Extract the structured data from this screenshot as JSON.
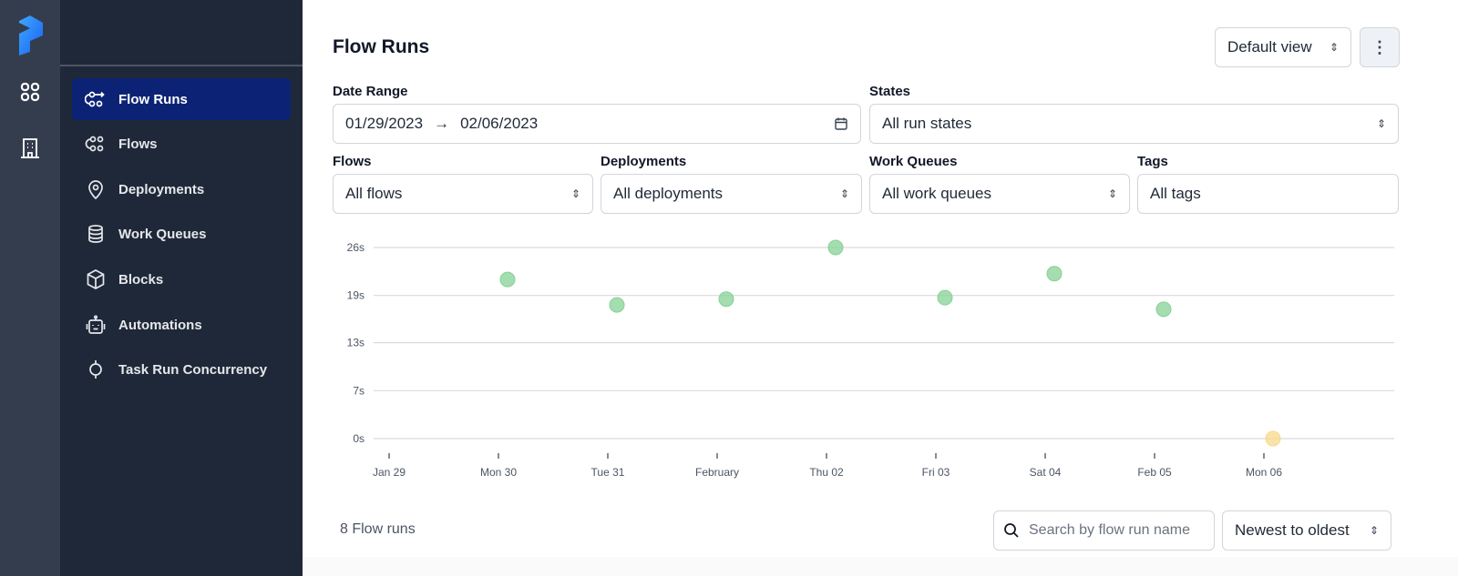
{
  "rail": {
    "icons": [
      "prefect-logo",
      "dashboard-icon",
      "building-icon"
    ]
  },
  "sidebar": {
    "items": [
      {
        "label": "Flow Runs",
        "icon": "flow-runs-icon",
        "active": true
      },
      {
        "label": "Flows",
        "icon": "flows-icon"
      },
      {
        "label": "Deployments",
        "icon": "map-pin-icon"
      },
      {
        "label": "Work Queues",
        "icon": "database-icon"
      },
      {
        "label": "Blocks",
        "icon": "cube-icon"
      },
      {
        "label": "Automations",
        "icon": "robot-icon"
      },
      {
        "label": "Task Run Concurrency",
        "icon": "concurrency-icon"
      }
    ]
  },
  "header": {
    "title": "Flow Runs",
    "view_select": "Default view",
    "menu_icon": "ellipsis-vertical-icon"
  },
  "filters": {
    "date_range": {
      "label": "Date Range",
      "start": "01/29/2023",
      "arrow": "→",
      "end": "02/06/2023"
    },
    "states": {
      "label": "States",
      "value": "All run states"
    },
    "flows": {
      "label": "Flows",
      "value": "All flows"
    },
    "deployments": {
      "label": "Deployments",
      "value": "All deployments"
    },
    "work_queues": {
      "label": "Work Queues",
      "value": "All work queues"
    },
    "tags": {
      "label": "Tags",
      "value": "All tags"
    }
  },
  "colors": {
    "completed": "#86d196",
    "pending": "#f7d98b",
    "accent": "#0c2375"
  },
  "chart_data": {
    "type": "scatter",
    "y_ticks": [
      "0s",
      "7s",
      "13s",
      "19s",
      "26s"
    ],
    "y_tick_values": [
      0,
      6.6,
      13.2,
      19.7,
      26.3
    ],
    "ylim": [
      0,
      26.3
    ],
    "x_ticks": [
      "Jan 29",
      "Mon 30",
      "Tue 31",
      "February",
      "Thu 02",
      "Fri 03",
      "Sat 04",
      "Feb 05",
      "Mon 06"
    ],
    "x_tick_dates": [
      "2023-01-29",
      "2023-01-30",
      "2023-01-31",
      "2023-02-01",
      "2023-02-02",
      "2023-02-03",
      "2023-02-04",
      "2023-02-05",
      "2023-02-06"
    ],
    "grid": true,
    "points": [
      {
        "x": "2023-01-30T02:00",
        "y": 21.9,
        "state": "completed"
      },
      {
        "x": "2023-01-31T02:00",
        "y": 18.4,
        "state": "completed"
      },
      {
        "x": "2023-02-01T02:00",
        "y": 19.2,
        "state": "completed"
      },
      {
        "x": "2023-02-02T02:00",
        "y": 26.3,
        "state": "completed"
      },
      {
        "x": "2023-02-03T02:00",
        "y": 19.4,
        "state": "completed"
      },
      {
        "x": "2023-02-04T02:00",
        "y": 22.7,
        "state": "completed"
      },
      {
        "x": "2023-02-05T02:00",
        "y": 17.8,
        "state": "completed"
      },
      {
        "x": "2023-02-06T02:00",
        "y": 0,
        "state": "pending"
      }
    ]
  },
  "list": {
    "count": "8 Flow runs",
    "search_placeholder": "Search by flow run name",
    "sort": "Newest to oldest"
  }
}
